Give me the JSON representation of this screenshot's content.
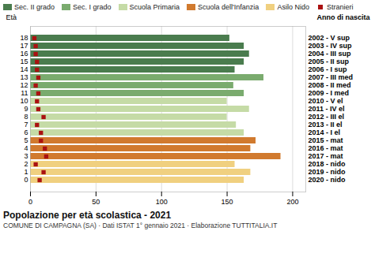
{
  "chart_data": {
    "type": "bar",
    "orientation": "horizontal",
    "title": "Popolazione per età scolastica - 2021",
    "subtitle": "COMUNE DI CAMPAGNA (SA) · Dati ISTAT 1° gennaio 2021 · Elaborazione TUTTITALIA.IT",
    "ylabel": "Età",
    "y2label": "Anno di nascita",
    "categories": [
      "18",
      "17",
      "16",
      "15",
      "14",
      "13",
      "12",
      "11",
      "10",
      "9",
      "8",
      "7",
      "6",
      "5",
      "4",
      "3",
      "2",
      "1",
      "0"
    ],
    "y2_categories": [
      "2002 - V sup",
      "2003 - IV sup",
      "2004 - III sup",
      "2005 - II sup",
      "2006 - I sup",
      "2007 - III med",
      "2008 - II med",
      "2009 - I med",
      "2010 - V el",
      "2011 - IV el",
      "2012 - III el",
      "2013 - II el",
      "2014 - I el",
      "2015 - mat",
      "2016 - mat",
      "2017 - mat",
      "2018 - nido",
      "2019 - nido",
      "2020 - nido"
    ],
    "values": [
      152,
      163,
      167,
      163,
      156,
      178,
      155,
      163,
      150,
      167,
      150,
      157,
      163,
      172,
      168,
      191,
      156,
      168,
      163
    ],
    "colors": [
      "#4a7c4e",
      "#4a7c4e",
      "#4a7c4e",
      "#4a7c4e",
      "#4a7c4e",
      "#7aab6e",
      "#7aab6e",
      "#7aab6e",
      "#c5dba6",
      "#c5dba6",
      "#c5dba6",
      "#c5dba6",
      "#c5dba6",
      "#d17a2e",
      "#d17a2e",
      "#d17a2e",
      "#f0d080",
      "#f0d080",
      "#f0d080"
    ],
    "series": [
      {
        "name": "Stranieri",
        "type": "scatter",
        "marker": "square",
        "color": "#aa1111",
        "values": [
          3,
          4,
          4,
          5,
          5,
          6,
          4,
          6,
          5,
          6,
          10,
          5,
          8,
          8,
          11,
          12,
          4,
          10,
          7
        ]
      }
    ],
    "legend": "top",
    "legend_items": [
      {
        "name": "Sec. II grado",
        "color": "#4a7c4e"
      },
      {
        "name": "Sec. I grado",
        "color": "#7aab6e"
      },
      {
        "name": "Scuola Primaria",
        "color": "#c5dba6"
      },
      {
        "name": "Scuola dell'Infanzia",
        "color": "#d17a2e"
      },
      {
        "name": "Asilo Nido",
        "color": "#f0d080"
      }
    ],
    "xlim": [
      0,
      210
    ],
    "xticks": [
      0,
      50,
      100,
      150,
      200
    ],
    "grid": true
  }
}
